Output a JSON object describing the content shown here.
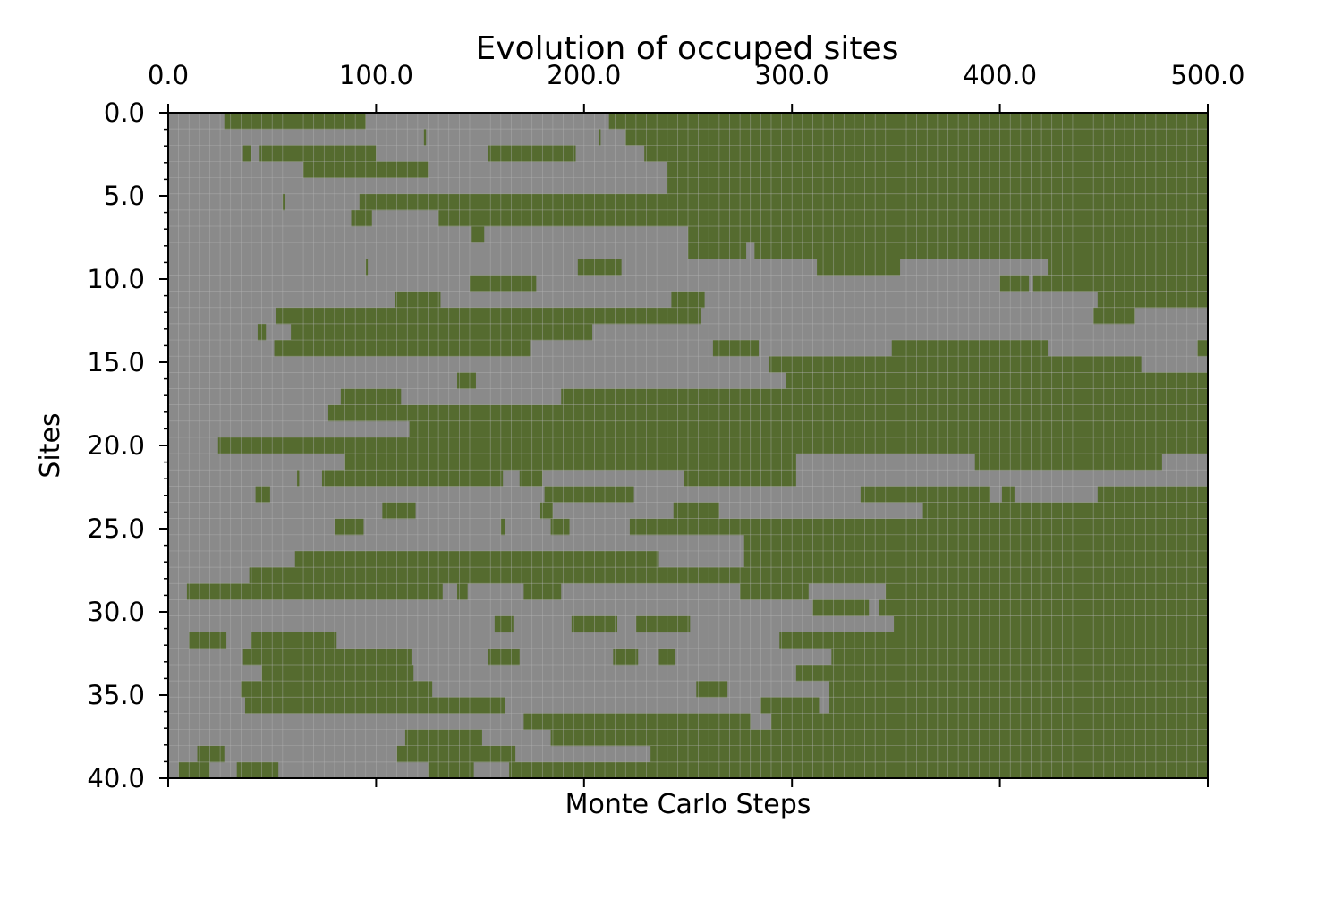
{
  "chart_data": {
    "type": "heatmap",
    "title": "Evolution of occuped sites",
    "xlabel": "Monte Carlo Steps",
    "ylabel": "Sites",
    "xlim": [
      0,
      500
    ],
    "ylim": [
      40,
      0
    ],
    "x_ticks": [
      "0.0",
      "100.0",
      "200.0",
      "300.0",
      "400.0",
      "500.0"
    ],
    "y_ticks": [
      "0.0",
      "5.0",
      "10.0",
      "15.0",
      "20.0",
      "25.0",
      "30.0",
      "35.0",
      "40.0"
    ],
    "x_tick_values": [
      0,
      100,
      200,
      300,
      400,
      500
    ],
    "y_tick_values": [
      0,
      5,
      10,
      15,
      20,
      25,
      30,
      35,
      40
    ],
    "x_axis_position": "top",
    "grid": true,
    "states": {
      "empty": "#8a8a8a",
      "occupied": "#556b2f"
    },
    "grid_color": "#b4b4b4",
    "occupied_intervals": [
      [
        [
          27,
          95
        ],
        [
          212,
          500
        ]
      ],
      [
        [
          123,
          124
        ],
        [
          207,
          208
        ],
        [
          220,
          500
        ]
      ],
      [
        [
          36,
          40
        ],
        [
          44,
          100
        ],
        [
          154,
          196
        ],
        [
          229,
          500
        ]
      ],
      [
        [
          65,
          125
        ],
        [
          240,
          500
        ]
      ],
      [
        [
          240,
          500
        ]
      ],
      [
        [
          55,
          56
        ],
        [
          92,
          500
        ]
      ],
      [
        [
          88,
          98
        ],
        [
          130,
          500
        ]
      ],
      [
        [
          146,
          152
        ],
        [
          250,
          500
        ]
      ],
      [
        [
          250,
          278
        ],
        [
          282,
          500
        ]
      ],
      [
        [
          95,
          96
        ],
        [
          197,
          218
        ],
        [
          312,
          352
        ],
        [
          423,
          500
        ]
      ],
      [
        [
          145,
          177
        ],
        [
          400,
          414
        ],
        [
          416,
          500
        ]
      ],
      [
        [
          109,
          131
        ],
        [
          242,
          258
        ],
        [
          447,
          500
        ]
      ],
      [
        [
          52,
          256
        ],
        [
          445,
          465
        ]
      ],
      [
        [
          43,
          47
        ],
        [
          59,
          204
        ]
      ],
      [
        [
          51,
          174
        ],
        [
          262,
          284
        ],
        [
          348,
          423
        ],
        [
          495,
          500
        ]
      ],
      [
        [
          289,
          468
        ]
      ],
      [
        [
          139,
          148
        ],
        [
          297,
          500
        ]
      ],
      [
        [
          83,
          112
        ],
        [
          189,
          500
        ]
      ],
      [
        [
          77,
          500
        ]
      ],
      [
        [
          116,
          500
        ]
      ],
      [
        [
          24,
          500
        ]
      ],
      [
        [
          85,
          302
        ],
        [
          388,
          478
        ]
      ],
      [
        [
          62,
          63
        ],
        [
          74,
          161
        ],
        [
          169,
          180
        ],
        [
          248,
          302
        ]
      ],
      [
        [
          42,
          49
        ],
        [
          181,
          224
        ],
        [
          333,
          395
        ],
        [
          401,
          407
        ],
        [
          447,
          500
        ]
      ],
      [
        [
          103,
          119
        ],
        [
          179,
          185
        ],
        [
          243,
          265
        ],
        [
          363,
          500
        ]
      ],
      [
        [
          80,
          94
        ],
        [
          160,
          162
        ],
        [
          184,
          193
        ],
        [
          222,
          500
        ]
      ],
      [
        [
          277,
          500
        ]
      ],
      [
        [
          61,
          236
        ],
        [
          277,
          500
        ]
      ],
      [
        [
          39,
          500
        ]
      ],
      [
        [
          9,
          132
        ],
        [
          139,
          144
        ],
        [
          171,
          189
        ],
        [
          275,
          308
        ],
        [
          345,
          500
        ]
      ],
      [
        [
          310,
          337
        ],
        [
          342,
          500
        ]
      ],
      [
        [
          157,
          166
        ],
        [
          194,
          216
        ],
        [
          225,
          251
        ],
        [
          349,
          500
        ]
      ],
      [
        [
          10,
          28
        ],
        [
          40,
          81
        ],
        [
          294,
          500
        ]
      ],
      [
        [
          36,
          117
        ],
        [
          154,
          169
        ],
        [
          214,
          226
        ],
        [
          236,
          244
        ],
        [
          319,
          500
        ]
      ],
      [
        [
          45,
          118
        ],
        [
          302,
          500
        ]
      ],
      [
        [
          35,
          127
        ],
        [
          254,
          269
        ],
        [
          318,
          500
        ]
      ],
      [
        [
          37,
          162
        ],
        [
          285,
          313
        ],
        [
          318,
          500
        ]
      ],
      [
        [
          171,
          280
        ],
        [
          290,
          500
        ]
      ],
      [
        [
          114,
          151
        ],
        [
          184,
          500
        ]
      ],
      [
        [
          14,
          27
        ],
        [
          110,
          167
        ],
        [
          232,
          500
        ]
      ],
      [
        [
          5,
          20
        ],
        [
          33,
          53
        ],
        [
          125,
          147
        ],
        [
          164,
          500
        ]
      ]
    ]
  }
}
